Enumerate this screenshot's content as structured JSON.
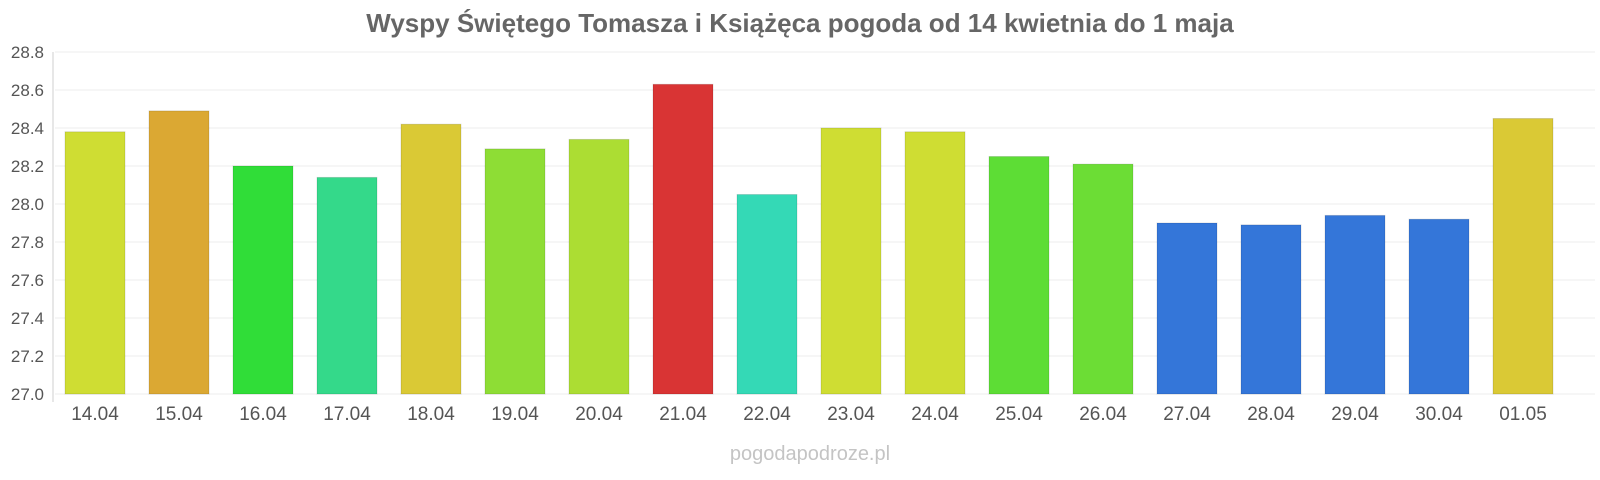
{
  "chart_data": {
    "type": "bar",
    "title": "Wyspy Świętego Tomasza i Książęca pogoda od 14 kwietnia do 1 maja",
    "xlabel": "",
    "ylabel": "",
    "ylim": [
      27.0,
      28.8
    ],
    "yticks": [
      "27.0",
      "27.2",
      "27.4",
      "27.6",
      "27.8",
      "28.0",
      "28.2",
      "28.4",
      "28.6",
      "28.8"
    ],
    "grid": true,
    "legend": "none",
    "categories": [
      "14.04",
      "15.04",
      "16.04",
      "17.04",
      "18.04",
      "19.04",
      "20.04",
      "21.04",
      "22.04",
      "23.04",
      "24.04",
      "25.04",
      "26.04",
      "27.04",
      "28.04",
      "29.04",
      "30.04",
      "01.05"
    ],
    "values": [
      28.38,
      28.49,
      28.2,
      28.14,
      28.42,
      28.29,
      28.34,
      28.63,
      28.05,
      28.4,
      28.38,
      28.25,
      28.21,
      27.9,
      27.89,
      27.94,
      27.92,
      28.45
    ],
    "colors": [
      "#cfdd33",
      "#dba833",
      "#30dd38",
      "#34d98a",
      "#dac935",
      "#8edd35",
      "#acdd33",
      "#d93434",
      "#34d9b6",
      "#cfdd33",
      "#cfdd33",
      "#5ddd35",
      "#6cdd35",
      "#3476d9",
      "#3476d9",
      "#3476d9",
      "#3476d9",
      "#dac935"
    ]
  },
  "watermark": "pogodapodroze.pl"
}
